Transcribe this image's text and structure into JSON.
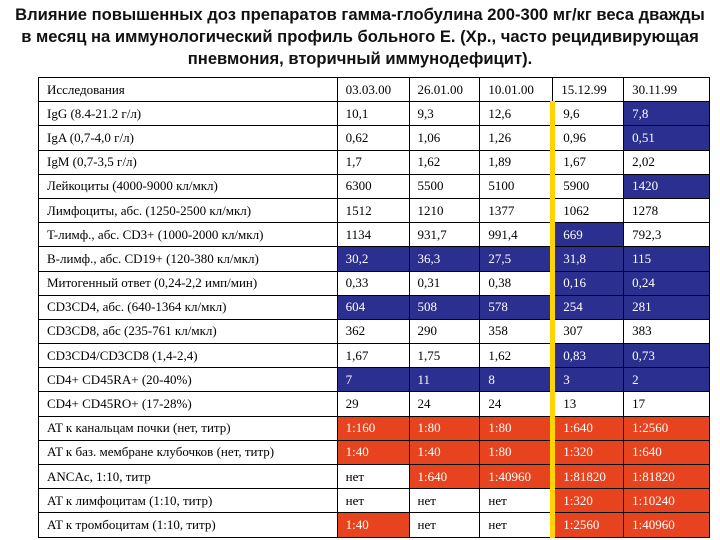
{
  "title": "Влияние повышенных доз препаратов гамма-глобулина 200-300 мг/кг веса дважды в месяц на иммунологический профиль больного Е. (Хр., часто рецидивирующая пневмония, вторичный иммунодефицит).",
  "table": {
    "header": [
      "Исследования",
      "03.03.00",
      "26.01.00",
      "10.01.00",
      "15.12.99",
      "30.11.99"
    ],
    "rows": [
      [
        "IgG (8.4-21.2 г/л)",
        "10,1",
        "9,3",
        "12,6",
        "9,6",
        "7,8"
      ],
      [
        "IgA (0,7-4,0 г/л)",
        "0,62",
        "1,06",
        "1,26",
        "0,96",
        "0,51"
      ],
      [
        "IgM (0,7-3,5 г/л)",
        "1,7",
        "1,62",
        "1,89",
        "1,67",
        "2,02"
      ],
      [
        "Лейкоциты (4000-9000 кл/мкл)",
        "6300",
        "5500",
        "5100",
        "5900",
        "1420"
      ],
      [
        "Лимфоциты, абс. (1250-2500 кл/мкл)",
        "1512",
        "1210",
        "1377",
        "1062",
        "1278"
      ],
      [
        "T-лимф., абс. CD3+ (1000-2000 кл/мкл)",
        "1134",
        "931,7",
        "991,4",
        "669",
        "792,3"
      ],
      [
        "B-лимф., абс. CD19+ (120-380 кл/мкл)",
        "30,2",
        "36,3",
        "27,5",
        "31,8",
        "115"
      ],
      [
        "Митогенный ответ (0,24-2,2 имп/мин)",
        "0,33",
        "0,31",
        "0,38",
        "0,16",
        "0,24"
      ],
      [
        "CD3CD4, абс. (640-1364 кл/мкл)",
        "604",
        "508",
        "578",
        "254",
        "281"
      ],
      [
        "CD3CD8, абс (235-761 кл/мкл)",
        "362",
        "290",
        "358",
        "307",
        "383"
      ],
      [
        "CD3CD4/CD3CD8 (1,4-2,4)",
        "1,67",
        "1,75",
        "1,62",
        "0,83",
        "0,73"
      ],
      [
        "CD4+ CD45RA+ (20-40%)",
        "7",
        "11",
        "8",
        "3",
        "2"
      ],
      [
        "CD4+ CD45RO+ (17-28%)",
        "29",
        "24",
        "24",
        "13",
        "17"
      ],
      [
        "AT к канальцам почки (нет, титр)",
        "1:160",
        "1:80",
        "1:80",
        "1:640",
        "1:2560"
      ],
      [
        "AT к баз. мембране клубочков (нет, титр)",
        "1:40",
        "1:40",
        "1:80",
        "1:320",
        "1:640"
      ],
      [
        "ANCAc, 1:10, титр",
        "нет",
        "1:640",
        "1:40960",
        "1:81820",
        "1:81820"
      ],
      [
        "AT к лимфоцитам (1:10, титр)",
        "нет",
        "нет",
        "нет",
        "1:320",
        "1:10240"
      ],
      [
        "AT к тромбоцитам (1:10, титр)",
        "1:40",
        "нет",
        "нет",
        "1:2560",
        "1:40960"
      ]
    ]
  }
}
